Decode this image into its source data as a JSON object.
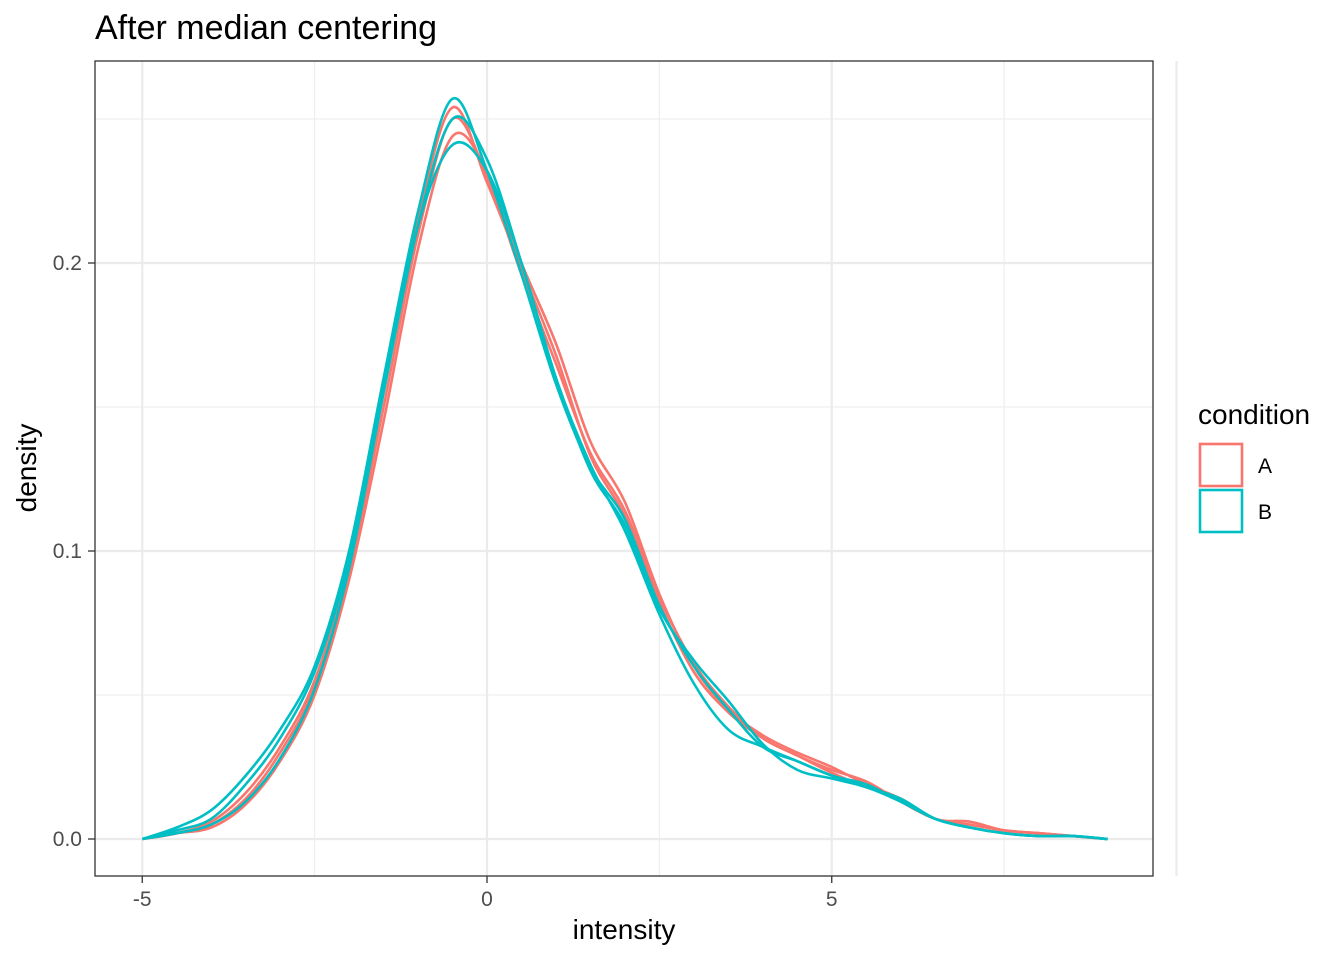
{
  "chart_data": {
    "type": "line",
    "title": "After median centering",
    "xlabel": "intensity",
    "ylabel": "density",
    "xlim": [
      -6.3,
      24.3
    ],
    "ylim": [
      -0.0126,
      0.2705
    ],
    "x_ticks": [
      -5,
      0,
      5
    ],
    "x_tick_labels": [
      "-5",
      "0",
      "5"
    ],
    "y_ticks": [
      0.0,
      0.1,
      0.2
    ],
    "y_tick_labels": [
      "0.0",
      "0.1",
      "0.2"
    ],
    "grid": true,
    "legend": {
      "title": "condition",
      "position": "right",
      "entries": [
        {
          "label": "A",
          "color": "#F8766D"
        },
        {
          "label": "B",
          "color": "#00BFC4"
        }
      ]
    },
    "series": [
      {
        "group": "A",
        "color": "#F8766D",
        "points": [
          [
            -5,
            0
          ],
          [
            -4.5,
            0.002
          ],
          [
            -4,
            0.004
          ],
          [
            -3.5,
            0.012
          ],
          [
            -3,
            0.027
          ],
          [
            -2.5,
            0.05
          ],
          [
            -2,
            0.09
          ],
          [
            -1.5,
            0.145
          ],
          [
            -1,
            0.205
          ],
          [
            -0.5,
            0.244
          ],
          [
            0,
            0.232
          ],
          [
            0.5,
            0.2
          ],
          [
            1,
            0.172
          ],
          [
            1.5,
            0.138
          ],
          [
            2,
            0.117
          ],
          [
            2.5,
            0.085
          ],
          [
            3,
            0.06
          ],
          [
            3.5,
            0.045
          ],
          [
            4,
            0.036
          ],
          [
            4.5,
            0.03
          ],
          [
            5,
            0.025
          ],
          [
            5.5,
            0.019
          ],
          [
            6,
            0.014
          ],
          [
            6.5,
            0.007
          ],
          [
            7,
            0.005
          ],
          [
            7.5,
            0.003
          ],
          [
            8,
            0.002
          ],
          [
            8.5,
            0.001
          ],
          [
            9,
            0
          ]
        ]
      },
      {
        "group": "A",
        "color": "#F8766D",
        "points": [
          [
            -5,
            0
          ],
          [
            -4.5,
            0.002
          ],
          [
            -4,
            0.006
          ],
          [
            -3.5,
            0.016
          ],
          [
            -3,
            0.032
          ],
          [
            -2.5,
            0.055
          ],
          [
            -2,
            0.095
          ],
          [
            -1.5,
            0.155
          ],
          [
            -1,
            0.215
          ],
          [
            -0.5,
            0.254
          ],
          [
            0,
            0.228
          ],
          [
            0.5,
            0.198
          ],
          [
            1,
            0.168
          ],
          [
            1.5,
            0.133
          ],
          [
            2,
            0.112
          ],
          [
            2.5,
            0.082
          ],
          [
            3,
            0.058
          ],
          [
            3.5,
            0.044
          ],
          [
            4,
            0.035
          ],
          [
            4.5,
            0.029
          ],
          [
            5,
            0.024
          ],
          [
            5.5,
            0.02
          ],
          [
            6,
            0.013
          ],
          [
            6.5,
            0.007
          ],
          [
            7,
            0.005
          ],
          [
            7.5,
            0.003
          ],
          [
            8,
            0.002
          ],
          [
            8.5,
            0.001
          ],
          [
            9,
            0
          ]
        ]
      },
      {
        "group": "A",
        "color": "#F8766D",
        "points": [
          [
            -5,
            0
          ],
          [
            -4.5,
            0.002
          ],
          [
            -4,
            0.005
          ],
          [
            -3.5,
            0.014
          ],
          [
            -3,
            0.03
          ],
          [
            -2.5,
            0.053
          ],
          [
            -2,
            0.093
          ],
          [
            -1.5,
            0.15
          ],
          [
            -1,
            0.21
          ],
          [
            -0.5,
            0.25
          ],
          [
            0,
            0.23
          ],
          [
            0.5,
            0.196
          ],
          [
            1,
            0.165
          ],
          [
            1.5,
            0.134
          ],
          [
            2,
            0.114
          ],
          [
            2.5,
            0.084
          ],
          [
            3,
            0.061
          ],
          [
            3.5,
            0.046
          ],
          [
            4,
            0.035
          ],
          [
            4.5,
            0.029
          ],
          [
            5,
            0.023
          ],
          [
            5.5,
            0.018
          ],
          [
            6,
            0.014
          ],
          [
            6.5,
            0.007
          ],
          [
            7,
            0.006
          ],
          [
            7.5,
            0.003
          ],
          [
            8,
            0.002
          ],
          [
            8.5,
            0.001
          ],
          [
            9,
            0
          ]
        ]
      },
      {
        "group": "B",
        "color": "#00BFC4",
        "points": [
          [
            -5,
            0
          ],
          [
            -4.5,
            0.004
          ],
          [
            -4,
            0.01
          ],
          [
            -3.5,
            0.022
          ],
          [
            -3,
            0.038
          ],
          [
            -2.5,
            0.06
          ],
          [
            -2,
            0.1
          ],
          [
            -1.5,
            0.16
          ],
          [
            -1,
            0.218
          ],
          [
            -0.5,
            0.257
          ],
          [
            0,
            0.232
          ],
          [
            0.5,
            0.196
          ],
          [
            1,
            0.158
          ],
          [
            1.5,
            0.129
          ],
          [
            2,
            0.111
          ],
          [
            2.5,
            0.081
          ],
          [
            3,
            0.06
          ],
          [
            3.5,
            0.045
          ],
          [
            4,
            0.032
          ],
          [
            4.5,
            0.027
          ],
          [
            5,
            0.022
          ],
          [
            5.5,
            0.019
          ],
          [
            6,
            0.013
          ],
          [
            6.5,
            0.007
          ],
          [
            7,
            0.004
          ],
          [
            7.5,
            0.002
          ],
          [
            8,
            0.001
          ],
          [
            8.5,
            0.001
          ],
          [
            9,
            0
          ]
        ]
      },
      {
        "group": "B",
        "color": "#00BFC4",
        "points": [
          [
            -5,
            0
          ],
          [
            -4.5,
            0.003
          ],
          [
            -4,
            0.007
          ],
          [
            -3.5,
            0.019
          ],
          [
            -3,
            0.035
          ],
          [
            -2.5,
            0.058
          ],
          [
            -2,
            0.097
          ],
          [
            -1.5,
            0.157
          ],
          [
            -1,
            0.213
          ],
          [
            -0.5,
            0.241
          ],
          [
            0,
            0.232
          ],
          [
            0.5,
            0.2
          ],
          [
            1,
            0.16
          ],
          [
            1.5,
            0.128
          ],
          [
            2,
            0.109
          ],
          [
            2.5,
            0.08
          ],
          [
            3,
            0.062
          ],
          [
            3.5,
            0.048
          ],
          [
            4,
            0.033
          ],
          [
            4.5,
            0.024
          ],
          [
            5,
            0.021
          ],
          [
            5.5,
            0.018
          ],
          [
            6,
            0.013
          ],
          [
            6.5,
            0.007
          ],
          [
            7,
            0.004
          ],
          [
            7.5,
            0.002
          ],
          [
            8,
            0.001
          ],
          [
            8.5,
            0.001
          ],
          [
            9,
            0
          ]
        ]
      },
      {
        "group": "B",
        "color": "#00BFC4",
        "points": [
          [
            -5,
            0
          ],
          [
            -4.5,
            0.002
          ],
          [
            -4,
            0.005
          ],
          [
            -3.5,
            0.013
          ],
          [
            -3,
            0.028
          ],
          [
            -2.5,
            0.052
          ],
          [
            -2,
            0.094
          ],
          [
            -1.5,
            0.155
          ],
          [
            -1,
            0.213
          ],
          [
            -0.5,
            0.25
          ],
          [
            0,
            0.236
          ],
          [
            0.5,
            0.2
          ],
          [
            1,
            0.16
          ],
          [
            1.5,
            0.13
          ],
          [
            2,
            0.107
          ],
          [
            2.5,
            0.078
          ],
          [
            3,
            0.054
          ],
          [
            3.5,
            0.038
          ],
          [
            4,
            0.032
          ],
          [
            4.5,
            0.027
          ],
          [
            5,
            0.022
          ],
          [
            5.5,
            0.018
          ],
          [
            6,
            0.014
          ],
          [
            6.5,
            0.007
          ],
          [
            7,
            0.004
          ],
          [
            7.5,
            0.002
          ],
          [
            8,
            0.001
          ],
          [
            8.5,
            0.001
          ],
          [
            9,
            0
          ]
        ]
      }
    ]
  }
}
